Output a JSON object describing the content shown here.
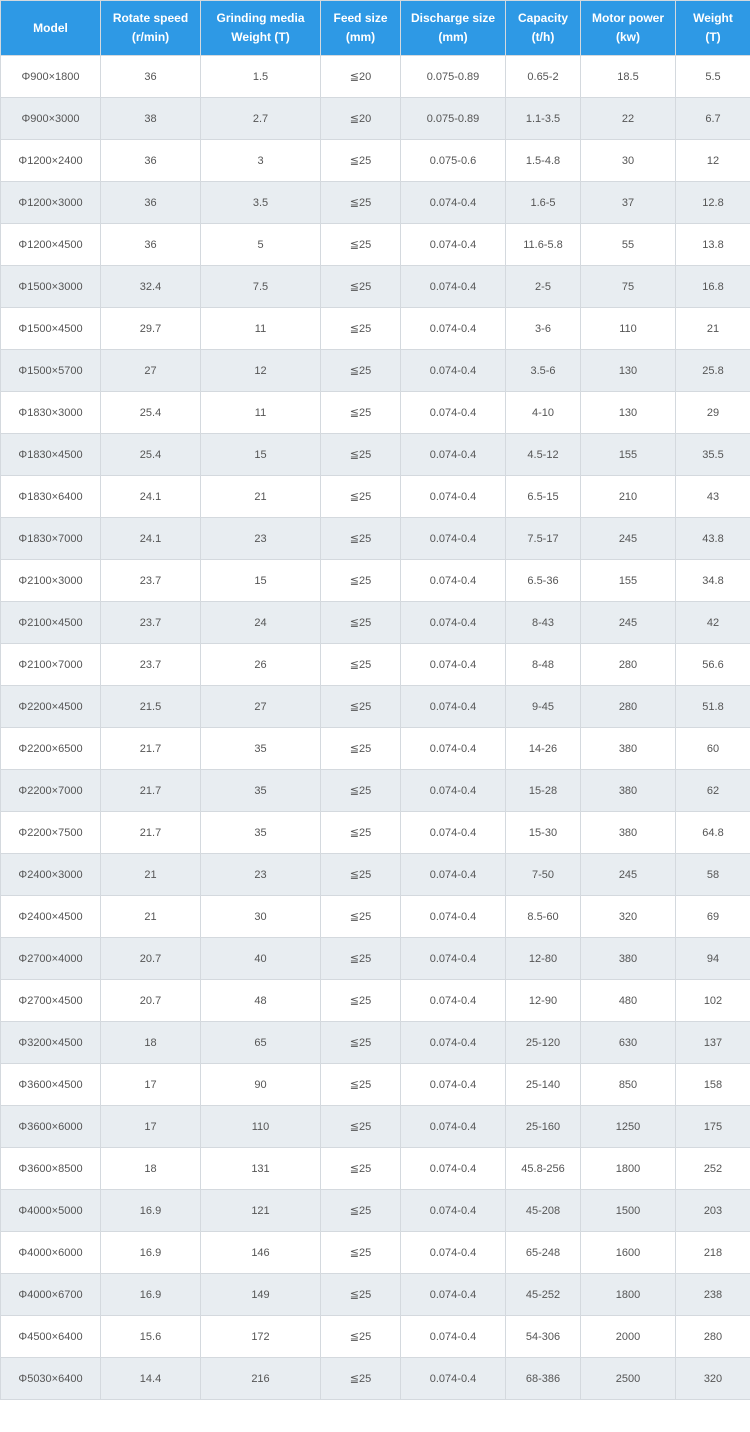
{
  "table": {
    "header_bg": "#2e99e5",
    "header_color": "#ffffff",
    "row_odd_bg": "#ffffff",
    "row_even_bg": "#e8edf1",
    "border_color": "#d4d9de",
    "cell_color": "#555555",
    "columns": [
      {
        "line1": "Model",
        "line2": ""
      },
      {
        "line1": "Rotate speed",
        "line2": "(r/min)"
      },
      {
        "line1": "Grinding media",
        "line2": "Weight (T)"
      },
      {
        "line1": "Feed size",
        "line2": "(mm)"
      },
      {
        "line1": "Discharge size",
        "line2": "(mm)"
      },
      {
        "line1": "Capacity",
        "line2": "(t/h)"
      },
      {
        "line1": "Motor power",
        "line2": "(kw)"
      },
      {
        "line1": "Weight",
        "line2": "(T)"
      }
    ],
    "rows": [
      [
        "Φ900×1800",
        "36",
        "1.5",
        "≦20",
        "0.075-0.89",
        "0.65-2",
        "18.5",
        "5.5"
      ],
      [
        "Φ900×3000",
        "38",
        "2.7",
        "≦20",
        "0.075-0.89",
        "1.1-3.5",
        "22",
        "6.7"
      ],
      [
        "Φ1200×2400",
        "36",
        "3",
        "≦25",
        "0.075-0.6",
        "1.5-4.8",
        "30",
        "12"
      ],
      [
        "Φ1200×3000",
        "36",
        "3.5",
        "≦25",
        "0.074-0.4",
        "1.6-5",
        "37",
        "12.8"
      ],
      [
        "Φ1200×4500",
        "36",
        "5",
        "≦25",
        "0.074-0.4",
        "11.6-5.8",
        "55",
        "13.8"
      ],
      [
        "Φ1500×3000",
        "32.4",
        "7.5",
        "≦25",
        "0.074-0.4",
        "2-5",
        "75",
        "16.8"
      ],
      [
        "Φ1500×4500",
        "29.7",
        "11",
        "≦25",
        "0.074-0.4",
        "3-6",
        "110",
        "21"
      ],
      [
        "Φ1500×5700",
        "27",
        "12",
        "≦25",
        "0.074-0.4",
        "3.5-6",
        "130",
        "25.8"
      ],
      [
        "Φ1830×3000",
        "25.4",
        "11",
        "≦25",
        "0.074-0.4",
        "4-10",
        "130",
        "29"
      ],
      [
        "Φ1830×4500",
        "25.4",
        "15",
        "≦25",
        "0.074-0.4",
        "4.5-12",
        "155",
        "35.5"
      ],
      [
        "Φ1830×6400",
        "24.1",
        "21",
        "≦25",
        "0.074-0.4",
        "6.5-15",
        "210",
        "43"
      ],
      [
        "Φ1830×7000",
        "24.1",
        "23",
        "≦25",
        "0.074-0.4",
        "7.5-17",
        "245",
        "43.8"
      ],
      [
        "Φ2100×3000",
        "23.7",
        "15",
        "≦25",
        "0.074-0.4",
        "6.5-36",
        "155",
        "34.8"
      ],
      [
        "Φ2100×4500",
        "23.7",
        "24",
        "≦25",
        "0.074-0.4",
        "8-43",
        "245",
        "42"
      ],
      [
        "Φ2100×7000",
        "23.7",
        "26",
        "≦25",
        "0.074-0.4",
        "8-48",
        "280",
        "56.6"
      ],
      [
        "Φ2200×4500",
        "21.5",
        "27",
        "≦25",
        "0.074-0.4",
        "9-45",
        "280",
        "51.8"
      ],
      [
        "Φ2200×6500",
        "21.7",
        "35",
        "≦25",
        "0.074-0.4",
        "14-26",
        "380",
        "60"
      ],
      [
        "Φ2200×7000",
        "21.7",
        "35",
        "≦25",
        "0.074-0.4",
        "15-28",
        "380",
        "62"
      ],
      [
        "Φ2200×7500",
        "21.7",
        "35",
        "≦25",
        "0.074-0.4",
        "15-30",
        "380",
        "64.8"
      ],
      [
        "Φ2400×3000",
        "21",
        "23",
        "≦25",
        "0.074-0.4",
        "7-50",
        "245",
        "58"
      ],
      [
        "Φ2400×4500",
        "21",
        "30",
        "≦25",
        "0.074-0.4",
        "8.5-60",
        "320",
        "69"
      ],
      [
        "Φ2700×4000",
        "20.7",
        "40",
        "≦25",
        "0.074-0.4",
        "12-80",
        "380",
        "94"
      ],
      [
        "Φ2700×4500",
        "20.7",
        "48",
        "≦25",
        "0.074-0.4",
        "12-90",
        "480",
        "102"
      ],
      [
        "Φ3200×4500",
        "18",
        "65",
        "≦25",
        "0.074-0.4",
        "25-120",
        "630",
        "137"
      ],
      [
        "Φ3600×4500",
        "17",
        "90",
        "≦25",
        "0.074-0.4",
        "25-140",
        "850",
        "158"
      ],
      [
        "Φ3600×6000",
        "17",
        "110",
        "≦25",
        "0.074-0.4",
        "25-160",
        "1250",
        "175"
      ],
      [
        "Φ3600×8500",
        "18",
        "131",
        "≦25",
        "0.074-0.4",
        "45.8-256",
        "1800",
        "252"
      ],
      [
        "Φ4000×5000",
        "16.9",
        "121",
        "≦25",
        "0.074-0.4",
        "45-208",
        "1500",
        "203"
      ],
      [
        "Φ4000×6000",
        "16.9",
        "146",
        "≦25",
        "0.074-0.4",
        "65-248",
        "1600",
        "218"
      ],
      [
        "Φ4000×6700",
        "16.9",
        "149",
        "≦25",
        "0.074-0.4",
        "45-252",
        "1800",
        "238"
      ],
      [
        "Φ4500×6400",
        "15.6",
        "172",
        "≦25",
        "0.074-0.4",
        "54-306",
        "2000",
        "280"
      ],
      [
        "Φ5030×6400",
        "14.4",
        "216",
        "≦25",
        "0.074-0.4",
        "68-386",
        "2500",
        "320"
      ]
    ]
  }
}
